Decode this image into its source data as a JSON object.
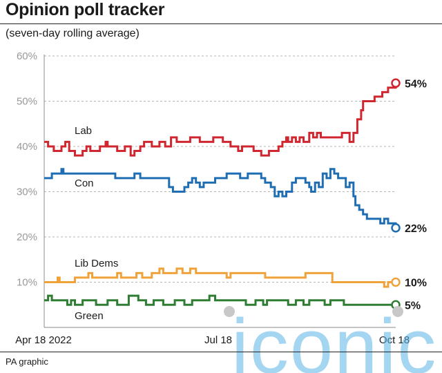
{
  "title": "Opinion poll tracker",
  "subtitle": "(seven-day rolling average)",
  "source": "PA graphic",
  "watermark": "iconic",
  "chart_data": {
    "type": "line",
    "yticks": [
      "60%",
      "50%",
      "40%",
      "30%",
      "20%",
      "10%"
    ],
    "ylim": [
      0,
      60
    ],
    "xticks": [
      "Apr 18 2022",
      "Jul 18",
      "Oct 18"
    ],
    "xlim": [
      "2022-04-18",
      "2022-10-18"
    ],
    "grid": true,
    "series": [
      {
        "name": "Lab",
        "color": "#d0262f",
        "end_label": "54%",
        "points": [
          [
            "2022-04-18",
            41
          ],
          [
            "2022-04-19",
            41
          ],
          [
            "2022-04-20",
            40
          ],
          [
            "2022-04-22",
            40
          ],
          [
            "2022-04-23",
            39
          ],
          [
            "2022-04-26",
            39
          ],
          [
            "2022-04-27",
            40
          ],
          [
            "2022-04-28",
            40
          ],
          [
            "2022-04-29",
            41
          ],
          [
            "2022-04-30",
            41
          ],
          [
            "2022-05-01",
            39
          ],
          [
            "2022-05-02",
            39
          ],
          [
            "2022-05-04",
            38
          ],
          [
            "2022-05-07",
            38
          ],
          [
            "2022-05-08",
            39
          ],
          [
            "2022-05-09",
            39
          ],
          [
            "2022-05-10",
            40
          ],
          [
            "2022-05-12",
            39
          ],
          [
            "2022-05-16",
            39
          ],
          [
            "2022-05-17",
            40
          ],
          [
            "2022-05-19",
            40
          ],
          [
            "2022-05-20",
            41
          ],
          [
            "2022-05-21",
            40
          ],
          [
            "2022-05-25",
            40
          ],
          [
            "2022-05-26",
            39
          ],
          [
            "2022-05-29",
            39
          ],
          [
            "2022-05-30",
            40
          ],
          [
            "2022-06-01",
            40
          ],
          [
            "2022-06-02",
            38
          ],
          [
            "2022-06-04",
            39
          ],
          [
            "2022-06-07",
            40
          ],
          [
            "2022-06-09",
            41
          ],
          [
            "2022-06-13",
            40
          ],
          [
            "2022-06-17",
            41
          ],
          [
            "2022-06-20",
            40
          ],
          [
            "2022-06-23",
            42
          ],
          [
            "2022-06-26",
            41
          ],
          [
            "2022-06-30",
            41
          ],
          [
            "2022-07-03",
            42
          ],
          [
            "2022-07-06",
            42
          ],
          [
            "2022-07-08",
            41
          ],
          [
            "2022-07-13",
            41
          ],
          [
            "2022-07-15",
            42
          ],
          [
            "2022-07-18",
            42
          ],
          [
            "2022-07-20",
            41
          ],
          [
            "2022-07-22",
            41
          ],
          [
            "2022-07-24",
            40
          ],
          [
            "2022-07-27",
            40
          ],
          [
            "2022-07-28",
            39
          ],
          [
            "2022-07-30",
            40
          ],
          [
            "2022-08-02",
            40
          ],
          [
            "2022-08-05",
            39
          ],
          [
            "2022-08-07",
            39
          ],
          [
            "2022-08-09",
            38
          ],
          [
            "2022-08-11",
            38
          ],
          [
            "2022-08-13",
            39
          ],
          [
            "2022-08-16",
            39
          ],
          [
            "2022-08-18",
            40
          ],
          [
            "2022-08-20",
            41
          ],
          [
            "2022-08-22",
            42
          ],
          [
            "2022-08-23",
            41
          ],
          [
            "2022-08-25",
            42
          ],
          [
            "2022-08-27",
            41
          ],
          [
            "2022-08-29",
            42
          ],
          [
            "2022-08-31",
            41
          ],
          [
            "2022-09-03",
            43
          ],
          [
            "2022-09-05",
            42
          ],
          [
            "2022-09-07",
            43
          ],
          [
            "2022-09-09",
            42
          ],
          [
            "2022-09-12",
            42
          ],
          [
            "2022-09-14",
            42
          ],
          [
            "2022-09-17",
            42
          ],
          [
            "2022-09-20",
            43
          ],
          [
            "2022-09-23",
            43
          ],
          [
            "2022-09-24",
            41
          ],
          [
            "2022-09-26",
            43
          ],
          [
            "2022-09-28",
            46
          ],
          [
            "2022-09-29",
            46
          ],
          [
            "2022-09-30",
            48
          ],
          [
            "2022-10-01",
            50
          ],
          [
            "2022-10-06",
            50
          ],
          [
            "2022-10-07",
            51
          ],
          [
            "2022-10-10",
            51
          ],
          [
            "2022-10-11",
            52
          ],
          [
            "2022-10-13",
            52
          ],
          [
            "2022-10-14",
            53
          ],
          [
            "2022-10-16",
            53
          ],
          [
            "2022-10-18",
            54
          ]
        ]
      },
      {
        "name": "Con",
        "color": "#1f6eb3",
        "end_label": "22%",
        "points": [
          [
            "2022-04-18",
            33
          ],
          [
            "2022-04-20",
            33
          ],
          [
            "2022-04-22",
            34
          ],
          [
            "2022-04-26",
            34
          ],
          [
            "2022-04-27",
            35
          ],
          [
            "2022-04-28",
            34
          ],
          [
            "2022-05-02",
            34
          ],
          [
            "2022-05-07",
            34
          ],
          [
            "2022-05-14",
            34
          ],
          [
            "2022-05-21",
            34
          ],
          [
            "2022-05-24",
            34
          ],
          [
            "2022-05-25",
            33
          ],
          [
            "2022-05-30",
            33
          ],
          [
            "2022-06-02",
            33
          ],
          [
            "2022-06-04",
            34
          ],
          [
            "2022-06-07",
            33
          ],
          [
            "2022-06-11",
            33
          ],
          [
            "2022-06-16",
            33
          ],
          [
            "2022-06-20",
            33
          ],
          [
            "2022-06-22",
            31
          ],
          [
            "2022-06-24",
            30
          ],
          [
            "2022-06-28",
            30
          ],
          [
            "2022-06-30",
            31
          ],
          [
            "2022-07-02",
            32
          ],
          [
            "2022-07-04",
            33
          ],
          [
            "2022-07-06",
            32
          ],
          [
            "2022-07-08",
            31
          ],
          [
            "2022-07-10",
            32
          ],
          [
            "2022-07-14",
            32
          ],
          [
            "2022-07-16",
            33
          ],
          [
            "2022-07-20",
            33
          ],
          [
            "2022-07-22",
            34
          ],
          [
            "2022-07-26",
            34
          ],
          [
            "2022-07-29",
            33
          ],
          [
            "2022-07-31",
            33
          ],
          [
            "2022-08-02",
            34
          ],
          [
            "2022-08-06",
            34
          ],
          [
            "2022-08-09",
            33
          ],
          [
            "2022-08-11",
            32
          ],
          [
            "2022-08-14",
            31
          ],
          [
            "2022-08-16",
            29
          ],
          [
            "2022-08-18",
            30
          ],
          [
            "2022-08-20",
            29
          ],
          [
            "2022-08-22",
            30
          ],
          [
            "2022-08-25",
            32
          ],
          [
            "2022-08-27",
            33
          ],
          [
            "2022-08-30",
            33
          ],
          [
            "2022-09-01",
            32
          ],
          [
            "2022-09-03",
            31
          ],
          [
            "2022-09-04",
            30
          ],
          [
            "2022-09-06",
            32
          ],
          [
            "2022-09-08",
            31
          ],
          [
            "2022-09-10",
            34
          ],
          [
            "2022-09-12",
            33
          ],
          [
            "2022-09-14",
            35
          ],
          [
            "2022-09-16",
            34
          ],
          [
            "2022-09-18",
            33
          ],
          [
            "2022-09-20",
            33
          ],
          [
            "2022-09-22",
            31
          ],
          [
            "2022-09-24",
            32
          ],
          [
            "2022-09-26",
            29
          ],
          [
            "2022-09-27",
            27
          ],
          [
            "2022-09-29",
            26
          ],
          [
            "2022-10-01",
            25
          ],
          [
            "2022-10-03",
            24
          ],
          [
            "2022-10-06",
            24
          ],
          [
            "2022-10-08",
            24
          ],
          [
            "2022-10-10",
            23
          ],
          [
            "2022-10-12",
            24
          ],
          [
            "2022-10-14",
            23
          ],
          [
            "2022-10-18",
            22
          ]
        ]
      },
      {
        "name": "Lib Dems",
        "color": "#f0a23a",
        "end_label": "10%",
        "points": [
          [
            "2022-04-18",
            10
          ],
          [
            "2022-04-24",
            10
          ],
          [
            "2022-04-25",
            11
          ],
          [
            "2022-04-26",
            10
          ],
          [
            "2022-05-03",
            10
          ],
          [
            "2022-05-04",
            11
          ],
          [
            "2022-05-10",
            11
          ],
          [
            "2022-05-11",
            12
          ],
          [
            "2022-05-13",
            11
          ],
          [
            "2022-05-19",
            11
          ],
          [
            "2022-05-24",
            11
          ],
          [
            "2022-05-26",
            12
          ],
          [
            "2022-05-28",
            11
          ],
          [
            "2022-06-04",
            11
          ],
          [
            "2022-06-05",
            12
          ],
          [
            "2022-06-08",
            11
          ],
          [
            "2022-06-13",
            12
          ],
          [
            "2022-06-15",
            12
          ],
          [
            "2022-06-17",
            13
          ],
          [
            "2022-06-19",
            12
          ],
          [
            "2022-06-25",
            12
          ],
          [
            "2022-06-26",
            13
          ],
          [
            "2022-06-29",
            12
          ],
          [
            "2022-07-01",
            12
          ],
          [
            "2022-07-03",
            13
          ],
          [
            "2022-07-06",
            12
          ],
          [
            "2022-07-11",
            12
          ],
          [
            "2022-07-14",
            12
          ],
          [
            "2022-07-18",
            12
          ],
          [
            "2022-07-20",
            12
          ],
          [
            "2022-07-22",
            11
          ],
          [
            "2022-07-24",
            12
          ],
          [
            "2022-08-01",
            12
          ],
          [
            "2022-08-10",
            12
          ],
          [
            "2022-08-11",
            11
          ],
          [
            "2022-08-14",
            11
          ],
          [
            "2022-08-22",
            11
          ],
          [
            "2022-08-31",
            11
          ],
          [
            "2022-09-01",
            12
          ],
          [
            "2022-09-13",
            12
          ],
          [
            "2022-09-15",
            10
          ],
          [
            "2022-10-08",
            10
          ],
          [
            "2022-10-10",
            10
          ],
          [
            "2022-10-12",
            9
          ],
          [
            "2022-10-14",
            10
          ],
          [
            "2022-10-18",
            10
          ]
        ]
      },
      {
        "name": "Green",
        "color": "#2e7d32",
        "end_label": "5%",
        "points": [
          [
            "2022-04-18",
            6
          ],
          [
            "2022-04-20",
            7
          ],
          [
            "2022-04-22",
            6
          ],
          [
            "2022-04-25",
            6
          ],
          [
            "2022-04-28",
            6
          ],
          [
            "2022-04-30",
            5
          ],
          [
            "2022-05-02",
            6
          ],
          [
            "2022-05-04",
            5
          ],
          [
            "2022-05-06",
            5
          ],
          [
            "2022-05-08",
            6
          ],
          [
            "2022-05-14",
            6
          ],
          [
            "2022-05-15",
            5
          ],
          [
            "2022-05-20",
            5
          ],
          [
            "2022-05-21",
            6
          ],
          [
            "2022-05-25",
            6
          ],
          [
            "2022-05-26",
            5
          ],
          [
            "2022-05-30",
            5
          ],
          [
            "2022-06-01",
            7
          ],
          [
            "2022-06-04",
            7
          ],
          [
            "2022-06-06",
            6
          ],
          [
            "2022-06-09",
            6
          ],
          [
            "2022-06-10",
            5
          ],
          [
            "2022-06-13",
            5
          ],
          [
            "2022-06-14",
            6
          ],
          [
            "2022-06-18",
            6
          ],
          [
            "2022-06-19",
            5
          ],
          [
            "2022-06-24",
            5
          ],
          [
            "2022-06-25",
            6
          ],
          [
            "2022-06-28",
            6
          ],
          [
            "2022-06-30",
            5
          ],
          [
            "2022-07-03",
            5
          ],
          [
            "2022-07-04",
            6
          ],
          [
            "2022-07-11",
            6
          ],
          [
            "2022-07-13",
            7
          ],
          [
            "2022-07-16",
            6
          ],
          [
            "2022-07-22",
            6
          ],
          [
            "2022-07-27",
            6
          ],
          [
            "2022-07-31",
            6
          ],
          [
            "2022-08-01",
            5
          ],
          [
            "2022-08-05",
            5
          ],
          [
            "2022-08-06",
            6
          ],
          [
            "2022-08-08",
            6
          ],
          [
            "2022-08-10",
            5
          ],
          [
            "2022-08-12",
            6
          ],
          [
            "2022-08-22",
            6
          ],
          [
            "2022-08-23",
            5
          ],
          [
            "2022-08-26",
            5
          ],
          [
            "2022-08-27",
            6
          ],
          [
            "2022-08-29",
            6
          ],
          [
            "2022-08-31",
            5
          ],
          [
            "2022-09-02",
            5
          ],
          [
            "2022-09-03",
            6
          ],
          [
            "2022-09-09",
            6
          ],
          [
            "2022-09-11",
            5
          ],
          [
            "2022-09-13",
            5
          ],
          [
            "2022-09-14",
            6
          ],
          [
            "2022-09-20",
            6
          ],
          [
            "2022-09-21",
            5
          ],
          [
            "2022-10-05",
            5
          ],
          [
            "2022-10-18",
            5
          ]
        ]
      }
    ]
  }
}
